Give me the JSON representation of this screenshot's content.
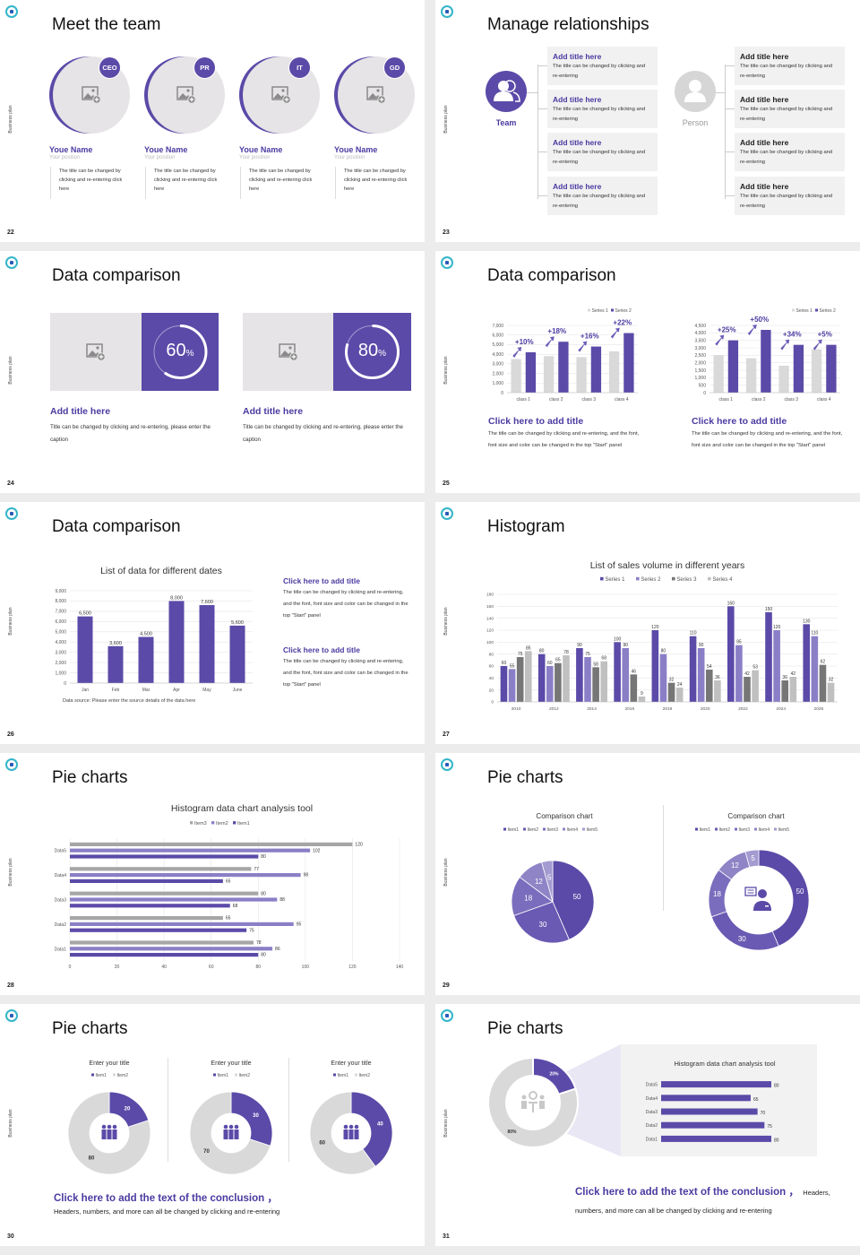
{
  "common": {
    "side_label": "Business plan"
  },
  "colors": {
    "accent": "#5b4aa8",
    "accent_text": "#4b3aa0",
    "placeholder": "#e6e4e6"
  },
  "slides": [
    {
      "page": "22",
      "title": "Meet the team",
      "members": [
        {
          "badge": "CEO",
          "name": "Youe Name",
          "position": "Your position",
          "desc": "The title can be changed by clicking and re-entering click here"
        },
        {
          "badge": "PR",
          "name": "Youe Name",
          "position": "Your position",
          "desc": "The title can be changed by clicking and re-entering click here"
        },
        {
          "badge": "IT",
          "name": "Youe Name",
          "position": "Your position",
          "desc": "The title can be changed by clicking and re-entering click here"
        },
        {
          "badge": "GD",
          "name": "Youe Name",
          "position": "Your position",
          "desc": "The title can be changed by clicking and re-entering click here"
        }
      ]
    },
    {
      "page": "23",
      "title": "Manage relationships",
      "team_label": "Team",
      "person_label": "Person",
      "team_items": [
        {
          "title": "Add title here",
          "desc": "The title can be changed by clicking and re-entering"
        },
        {
          "title": "Add title here",
          "desc": "The title can be changed by clicking and re-entering"
        },
        {
          "title": "Add title here",
          "desc": "The title can be changed by clicking and re-entering"
        },
        {
          "title": "Add title here",
          "desc": "The title can be changed by clicking and re-entering"
        }
      ],
      "person_items": [
        {
          "title": "Add title here",
          "desc": "The title can be changed by clicking and re-entering"
        },
        {
          "title": "Add title here",
          "desc": "The title can be changed by clicking and re-entering"
        },
        {
          "title": "Add title here",
          "desc": "The title can be changed by clicking and re-entering"
        },
        {
          "title": "Add title here",
          "desc": "The title can be changed by clicking and re-entering"
        }
      ]
    },
    {
      "page": "24",
      "title": "Data comparison",
      "cards": [
        {
          "percent": "60",
          "unit": "%",
          "value": 0.6,
          "heading": "Add title here",
          "caption": "Title can be changed by clicking and re-entering, please enter the caption"
        },
        {
          "percent": "80",
          "unit": "%",
          "value": 0.8,
          "heading": "Add title here",
          "caption": "Title can be changed by clicking and re-entering, please enter the caption"
        }
      ]
    },
    {
      "page": "25",
      "title": "Data comparison",
      "panels": [
        {
          "heading": "Click here to add title",
          "body": "The title can be changed by clicking and re-entering, and the font, font size and color can be changed in the top \"Start\" panel"
        },
        {
          "heading": "Click here to add title",
          "body": "The title can be changed by clicking and re-entering, and the font, font size and color can be changed in the top \"Start\" panel"
        }
      ]
    },
    {
      "page": "26",
      "title": "Data comparison",
      "notes": [
        {
          "heading": "Click here to add title",
          "body": "The title can be changed by clicking and re-entering, and the font, font size and color can be changed in the top \"Start\" panel"
        },
        {
          "heading": "Click here to add title",
          "body": "The title can be changed by clicking and re-entering, and the font, font size and color can be changed in the top \"Start\" panel"
        }
      ]
    },
    {
      "page": "27",
      "title": "Histogram"
    },
    {
      "page": "28",
      "title": "Pie charts"
    },
    {
      "page": "29",
      "title": "Pie charts"
    },
    {
      "page": "30",
      "title": "Pie charts",
      "conclusion": "Click here to add the text of the conclusion ，",
      "conclusion_body": "Headers, numbers, and more can all be changed by clicking and re-entering"
    },
    {
      "page": "31",
      "title": "Pie charts",
      "conclusion": "Click here to add the text of the conclusion ，",
      "conclusion_body": "Headers, numbers, and more can all be changed by clicking and re-entering"
    }
  ],
  "chart_data": [
    {
      "type": "bar",
      "categories": [
        "class 1",
        "class 2",
        "class 3",
        "class 4"
      ],
      "series": [
        {
          "name": "Series 1",
          "values": [
            3500,
            3800,
            3700,
            4300
          ],
          "color": "#d9d9d9"
        },
        {
          "name": "Series 2",
          "values": [
            4200,
            5300,
            4800,
            6200
          ],
          "color": "#5b4aa8"
        }
      ],
      "ylim": [
        0,
        7000
      ],
      "yticks": [
        "0",
        "1,000",
        "2,000",
        "3,000",
        "4,000",
        "5,000",
        "6,000",
        "7,000"
      ],
      "annotations": [
        "+10%",
        "+18%",
        "+16%",
        "+22%"
      ],
      "legend": "top-right",
      "grid": true
    },
    {
      "type": "bar",
      "categories": [
        "class 1",
        "class 2",
        "class 3",
        "class 4"
      ],
      "series": [
        {
          "name": "Series 1",
          "values": [
            2500,
            2300,
            1800,
            2900
          ],
          "color": "#d9d9d9"
        },
        {
          "name": "Series 2",
          "values": [
            3500,
            4200,
            3200,
            3200
          ],
          "color": "#5b4aa8"
        }
      ],
      "ylim": [
        0,
        4500
      ],
      "yticks": [
        "0",
        "500",
        "1,000",
        "1,500",
        "2,000",
        "2,500",
        "3,000",
        "3,500",
        "4,000",
        "4,500"
      ],
      "annotations": [
        "+25%",
        "+50%",
        "+34%",
        "+5%"
      ],
      "legend": "top-right",
      "grid": true
    },
    {
      "type": "bar",
      "title": "List of data for different dates",
      "categories": [
        "Jan",
        "Feb",
        "Mar",
        "Apr",
        "May",
        "June"
      ],
      "series": [
        {
          "values": [
            6500,
            3600,
            4500,
            8000,
            7600,
            5600
          ],
          "color": "#5b4aa8"
        }
      ],
      "data_labels": [
        "6,500",
        "3,600",
        "4,500",
        "8,000",
        "7,600",
        "5,600"
      ],
      "ylim": [
        0,
        9000
      ],
      "yticks": [
        "0",
        "1,000",
        "2,000",
        "3,000",
        "4,000",
        "5,000",
        "6,000",
        "7,000",
        "8,000",
        "9,000"
      ],
      "source": "Data source: Please enter the source details of the data here",
      "grid": true
    },
    {
      "type": "bar",
      "title": "List of sales volume in different years",
      "categories": [
        "2010",
        "2012",
        "2014",
        "2016",
        "2018",
        "2020",
        "2022",
        "2024",
        "2026"
      ],
      "series": [
        {
          "name": "Series 1",
          "values": [
            60,
            80,
            90,
            100,
            120,
            110,
            160,
            150,
            130
          ],
          "color": "#5b4aa8"
        },
        {
          "name": "Series 2",
          "values": [
            55,
            60,
            75,
            90,
            80,
            90,
            95,
            120,
            110
          ],
          "color": "#8a7fc7"
        },
        {
          "name": "Series 3",
          "values": [
            75,
            65,
            58,
            46,
            32,
            54,
            42,
            36,
            62
          ],
          "color": "#767676"
        },
        {
          "name": "Series 4",
          "values": [
            85,
            78,
            68,
            9,
            24,
            36,
            53,
            42,
            32
          ],
          "color": "#c0c0c0"
        }
      ],
      "ylim": [
        0,
        180
      ],
      "yticks": [
        "0",
        "20",
        "40",
        "60",
        "80",
        "100",
        "120",
        "140",
        "160",
        "180"
      ],
      "legend": "top",
      "grid": true
    },
    {
      "type": "bar",
      "orientation": "horizontal",
      "title": "Histogram data chart analysis tool",
      "categories": [
        "Data1",
        "Data2",
        "Data3",
        "Data4",
        "Data5"
      ],
      "series": [
        {
          "name": "Item3",
          "values": [
            78,
            65,
            80,
            77,
            120
          ],
          "color": "#a6a6a6"
        },
        {
          "name": "Item2",
          "values": [
            86,
            95,
            88,
            98,
            102
          ],
          "color": "#8a7fc7"
        },
        {
          "name": "Item1",
          "values": [
            80,
            75,
            68,
            65,
            80
          ],
          "color": "#5b4aa8"
        }
      ],
      "xlim": [
        0,
        140
      ],
      "xticks": [
        "0",
        "20",
        "40",
        "60",
        "80",
        "100",
        "120",
        "140"
      ],
      "legend": "top",
      "grid": true
    },
    {
      "type": "pie",
      "title": "Comparison chart",
      "labels": [
        "Item1",
        "Item2",
        "Item3",
        "Item4",
        "Item5"
      ],
      "values": [
        50,
        30,
        18,
        12,
        5
      ],
      "colors": [
        "#5b4aa8",
        "#6a5ab3",
        "#7b6dbd",
        "#8f84c6",
        "#a49bd1"
      ],
      "legend": "top"
    },
    {
      "type": "pie",
      "subtype": "donut",
      "title": "Comparison chart",
      "labels": [
        "Item1",
        "Item2",
        "Item3",
        "Item4",
        "Item5"
      ],
      "values": [
        50,
        30,
        18,
        12,
        5
      ],
      "colors": [
        "#5b4aa8",
        "#6a5ab3",
        "#7b6dbd",
        "#8f84c6",
        "#a49bd1"
      ],
      "legend": "top"
    },
    {
      "type": "pie",
      "subtype": "donut",
      "title": "Enter your title",
      "labels": [
        "Item1",
        "Item2"
      ],
      "values": [
        20,
        80
      ],
      "colors": [
        "#5b4aa8",
        "#d9d9d9"
      ],
      "legend": "top"
    },
    {
      "type": "pie",
      "subtype": "donut",
      "title": "Enter your title",
      "labels": [
        "Item1",
        "Item2"
      ],
      "values": [
        30,
        70
      ],
      "colors": [
        "#5b4aa8",
        "#d9d9d9"
      ],
      "legend": "top"
    },
    {
      "type": "pie",
      "subtype": "donut",
      "title": "Enter your title",
      "labels": [
        "Item1",
        "Item2"
      ],
      "values": [
        40,
        60
      ],
      "colors": [
        "#5b4aa8",
        "#d9d9d9"
      ],
      "legend": "top"
    },
    {
      "type": "pie",
      "subtype": "donut",
      "values": [
        20,
        80
      ],
      "value_labels": [
        "20%",
        "80%"
      ],
      "colors": [
        "#5b4aa8",
        "#d9d9d9"
      ]
    },
    {
      "type": "bar",
      "orientation": "horizontal",
      "title": "Histogram data chart analysis tool",
      "categories": [
        "Data1",
        "Data2",
        "Data3",
        "Data4",
        "Data5"
      ],
      "series": [
        {
          "values": [
            80,
            75,
            70,
            65,
            80
          ],
          "color": "#5b4aa8"
        }
      ],
      "xlim": [
        0,
        80
      ]
    }
  ]
}
